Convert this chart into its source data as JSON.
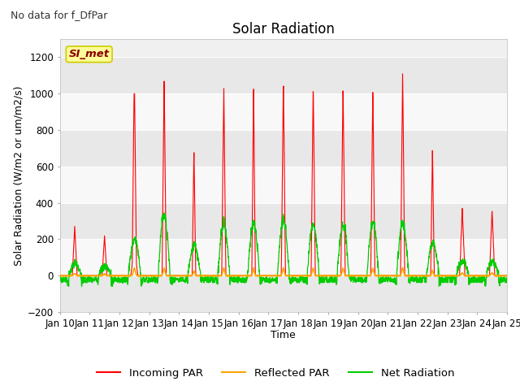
{
  "title": "Solar Radiation",
  "subtitle": "No data for f_DfPar",
  "xlabel": "Time",
  "ylabel": "Solar Radiation (W/m2 or um/m2/s)",
  "ylim": [
    -200,
    1300
  ],
  "yticks": [
    -200,
    0,
    200,
    400,
    600,
    800,
    1000,
    1200
  ],
  "x_tick_labels": [
    "Jan 10",
    "Jan 11",
    "Jan 12",
    "Jan 13",
    "Jan 14",
    "Jan 15",
    "Jan 16",
    "Jan 17",
    "Jan 18",
    "Jan 19",
    "Jan 20",
    "Jan 21",
    "Jan 22",
    "Jan 23",
    "Jan 24",
    "Jan 25"
  ],
  "legend_labels": [
    "Incoming PAR",
    "Reflected PAR",
    "Net Radiation"
  ],
  "legend_colors": [
    "#ff0000",
    "#ffa500",
    "#00cc00"
  ],
  "fig_bg_color": "#ffffff",
  "plot_bg_color": "#f0f0f0",
  "band_color_light": "#e8e8e8",
  "band_color_dark": "#f8f8f8",
  "box_label": "SI_met",
  "box_color": "#ffff99",
  "box_border_color": "#cccc00",
  "box_text_color": "#8b0000",
  "title_fontsize": 12,
  "label_fontsize": 9,
  "tick_fontsize": 8.5,
  "subtitle_fontsize": 9
}
